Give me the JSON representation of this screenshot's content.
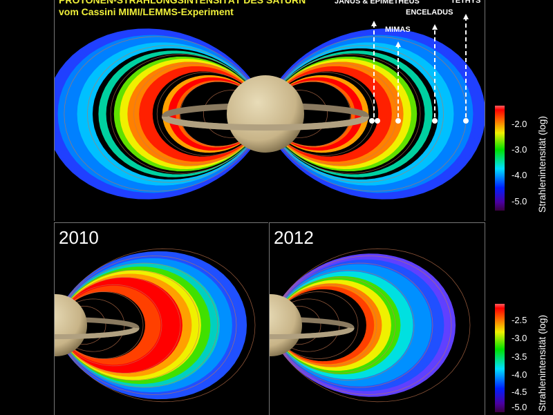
{
  "title": {
    "line1": "PROTONEN-STRAHLUNGSINTENSITÄT DES SATURN",
    "line2": "vom Cassini MIMI/LEMMS-Experiment"
  },
  "moons": [
    {
      "label": "JANUS & EPIMETHEUS"
    },
    {
      "label": "MIMAS"
    },
    {
      "label": "ENCELADUS"
    },
    {
      "label": "TETHYS"
    }
  ],
  "panels": {
    "left_year": "2010",
    "right_year": "2012"
  },
  "colorbar_top": {
    "label": "Strahlenintensität (log)",
    "ticks": [
      "-2.0",
      "-3.0",
      "-4.0",
      "-5.0"
    ],
    "range": [
      -5.3,
      -1.6
    ]
  },
  "colorbar_bottom": {
    "label": "Strahlenintensität (log)",
    "ticks": [
      "-2.5",
      "-3.0",
      "-3.5",
      "-4.0",
      "-4.5",
      "-5.0"
    ],
    "range": [
      -5.1,
      -2.2
    ]
  },
  "colors": {
    "title": "#f0f03a",
    "field_lines": "#c87850",
    "saturn": "#d8c8a0"
  }
}
